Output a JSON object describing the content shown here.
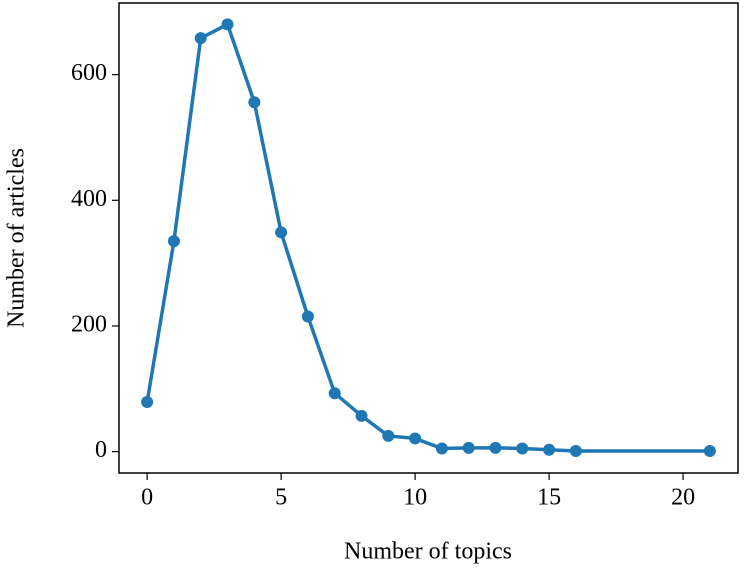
{
  "chart_data": {
    "type": "line",
    "x_label": "Number of topics",
    "y_label": "Number of articles",
    "x": [
      0,
      1,
      2,
      3,
      4,
      5,
      6,
      7,
      8,
      9,
      10,
      11,
      12,
      13,
      14,
      15,
      16,
      21
    ],
    "series": [
      {
        "color": "#1f77b4",
        "values": [
          79,
          335,
          658,
          680,
          556,
          349,
          215,
          93,
          57,
          25,
          21,
          5,
          6,
          6,
          5,
          3,
          1,
          1
        ]
      }
    ],
    "xlim": [
      -1.05,
      22.05
    ],
    "xticks": [
      0,
      5,
      10,
      15,
      20
    ],
    "ylim": [
      -34,
      714
    ],
    "yticks": [
      0,
      200,
      400,
      600
    ]
  }
}
